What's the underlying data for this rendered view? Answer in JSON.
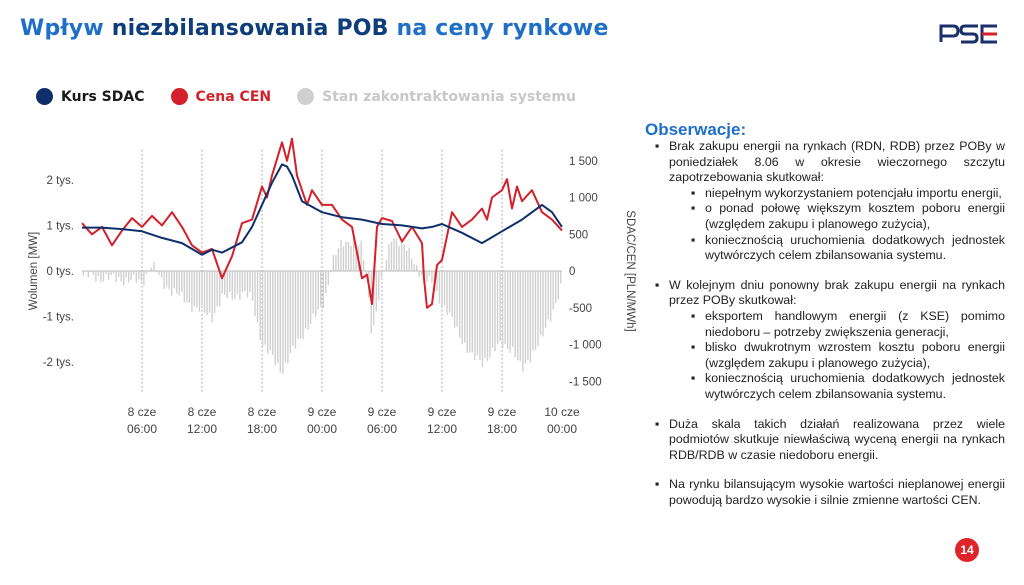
{
  "header": {
    "title_part1": "Wpływ",
    "title_part2": "niezbilansowania POB",
    "title_part3": "na ceny rynkowe",
    "logo_text": "PSE"
  },
  "colors": {
    "sdac": "#0f2f6b",
    "cen": "#d3202a",
    "contract": "#d0d0d0",
    "accent": "#1f6fc6"
  },
  "chart_data": {
    "type": "line",
    "legend": [
      "Kurs SDAC",
      "Cena CEN",
      "Stan zakontraktowania systemu"
    ],
    "ylabel_left": "Wolumen [MW]",
    "ylabel_right": "SDAC/CEN [PLN/MWh]",
    "y_left_ticks": [
      "2 tys.",
      "1 tys.",
      "0 tys.",
      "-1 tys.",
      "-2 tys."
    ],
    "y_left_lim": [
      -2400,
      2400
    ],
    "y_right_ticks": [
      "1 500",
      "1 000",
      "500",
      "0",
      "-500",
      "-1 000",
      "-1 500"
    ],
    "y_right_lim": [
      -1700,
      1700
    ],
    "x_ticks": [
      [
        "8 cze",
        "06:00"
      ],
      [
        "8 cze",
        "12:00"
      ],
      [
        "8 cze",
        "18:00"
      ],
      [
        "9 cze",
        "00:00"
      ],
      [
        "9 cze",
        "06:00"
      ],
      [
        "9 cze",
        "12:00"
      ],
      [
        "9 cze",
        "18:00"
      ],
      [
        "10 cze",
        "00:00"
      ]
    ],
    "x_hours": [
      6,
      12,
      18,
      24,
      30,
      36,
      42,
      48
    ],
    "x_range": [
      0,
      48
    ],
    "series": [
      {
        "name": "Kurs SDAC",
        "x": [
          0,
          2,
          4,
          6,
          8,
          10,
          12,
          13,
          14,
          16,
          17,
          18,
          19,
          20,
          20.5,
          21,
          22,
          24,
          26,
          28,
          30,
          32,
          34,
          35,
          36,
          38,
          40,
          42,
          44,
          46,
          47,
          48
        ],
        "values": [
          590,
          590,
          570,
          540,
          450,
          380,
          220,
          290,
          250,
          390,
          600,
          900,
          1200,
          1450,
          1420,
          1300,
          950,
          800,
          730,
          700,
          640,
          620,
          580,
          600,
          640,
          520,
          380,
          540,
          700,
          900,
          800,
          600
        ]
      },
      {
        "name": "Cena CEN",
        "x": [
          0,
          1,
          2,
          3,
          4,
          5,
          6,
          7,
          8,
          9,
          10,
          11,
          12,
          13,
          14,
          15,
          16,
          17,
          18,
          18.5,
          19,
          20,
          20.5,
          21,
          21.5,
          22,
          22.5,
          23,
          24,
          25,
          26,
          27,
          28,
          28.5,
          29,
          29.5,
          30,
          31,
          32,
          33,
          34,
          34.2,
          34.5,
          35,
          35.5,
          36,
          37,
          38,
          39,
          40,
          40.5,
          41,
          42,
          42.5,
          43,
          43.5,
          44,
          45,
          46,
          47,
          48
        ],
        "values": [
          650,
          500,
          600,
          350,
          550,
          720,
          600,
          750,
          620,
          800,
          600,
          350,
          250,
          300,
          -100,
          200,
          650,
          700,
          1150,
          1000,
          1300,
          1750,
          1500,
          1800,
          1300,
          1100,
          900,
          1100,
          900,
          900,
          700,
          600,
          -100,
          -50,
          -450,
          600,
          720,
          680,
          400,
          600,
          380,
          -100,
          -500,
          -450,
          80,
          150,
          800,
          600,
          700,
          850,
          700,
          1000,
          1100,
          1250,
          850,
          1150,
          950,
          1100,
          800,
          700,
          550
        ]
      },
      {
        "name": "Stan zakontraktowania systemu",
        "x": [
          0,
          2,
          4,
          6,
          7,
          8,
          10,
          12,
          13,
          14,
          16,
          17,
          18,
          19,
          20,
          21,
          22,
          23,
          24,
          24.5,
          25,
          26,
          27,
          28,
          28.5,
          29,
          30,
          31,
          32,
          33,
          34,
          35,
          36,
          37,
          38,
          39,
          40,
          41,
          42,
          43,
          44,
          45,
          46,
          47,
          48
        ],
        "values": [
          -100,
          -150,
          -180,
          -250,
          150,
          -250,
          -600,
          -900,
          -1000,
          -600,
          -500,
          -600,
          -1600,
          -1900,
          -2200,
          -1800,
          -1400,
          -1100,
          -800,
          -400,
          200,
          600,
          700,
          500,
          -200,
          -1400,
          -200,
          800,
          600,
          300,
          -100,
          -300,
          -700,
          -1100,
          -1500,
          -1900,
          -2000,
          -1800,
          -1600,
          -1700,
          -2200,
          -1800,
          -1500,
          -900,
          -300
        ]
      }
    ]
  },
  "observations": {
    "heading": "Obserwacje:",
    "p1": "Brak zakupu energii na rynkach (RDN, RDB) przez POBy w poniedziałek 8.06 w okresie wieczornego szczytu zapotrzebowania skutkował:",
    "p1_items": [
      "niepełnym wykorzystaniem potencjału importu energii,",
      "o ponad połowę większym kosztem poboru energii (względem zakupu i planowego zużycia),",
      "koniecznością uruchomienia dodatkowych jednostek wytwórczych celem zbilansowania systemu."
    ],
    "p2": "W kolejnym dniu ponowny brak zakupu energii na rynkach przez POBy skutkował:",
    "p2_items": [
      "eksportem handlowym energii (z KSE) pomimo niedoboru – potrzeby zwiększenia generacji,",
      "blisko dwukrotnym wzrostem kosztu poboru energii (względem zakupu i planowego zużycia),",
      "koniecznością uruchomienia dodatkowych jednostek wytwórczych celem zbilansowania systemu."
    ],
    "p3": "Duża skala takich działań realizowana przez wiele podmiotów skutkuje niewłaściwą wyceną energii na rynkach RDB/RDB w czasie niedoboru energii.",
    "p4": "Na rynku bilansującym wysokie wartości nieplanowej energii powodują bardzo wysokie i silnie zmienne wartości CEN."
  },
  "footer": {
    "page_number": "14"
  }
}
